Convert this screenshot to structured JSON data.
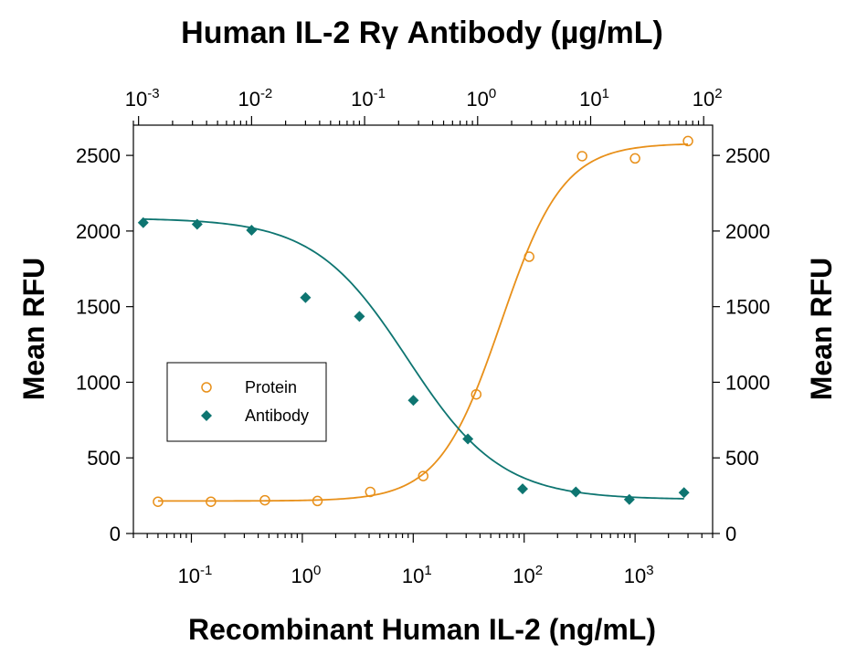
{
  "chart_data": {
    "type": "scatter",
    "title": "Human IL-2 Rγ Antibody (µg/mL)",
    "xlabel": "Recombinant Human IL-2 (ng/mL)",
    "ylabel": "Mean RFU",
    "ylabel_right": "Mean RFU",
    "x_scale": "log",
    "xlim": [
      0.03,
      5000
    ],
    "ylim": [
      0,
      2700
    ],
    "x_ticks": [
      {
        "base": "10",
        "exp": "-1",
        "value": 0.1
      },
      {
        "base": "10",
        "exp": "0",
        "value": 1
      },
      {
        "base": "10",
        "exp": "1",
        "value": 10
      },
      {
        "base": "10",
        "exp": "2",
        "value": 100
      },
      {
        "base": "10",
        "exp": "3",
        "value": 1000
      }
    ],
    "y_ticks": [
      "0",
      "500",
      "1000",
      "1500",
      "2000",
      "2500"
    ],
    "y_tick_values": [
      0,
      500,
      1000,
      1500,
      2000,
      2500
    ],
    "top_axis": {
      "label": "Human IL-2 Rγ Antibody (µg/mL)",
      "xlim": [
        0.0009,
        120
      ],
      "ticks": [
        {
          "base": "10",
          "exp": "-3",
          "value": 0.001
        },
        {
          "base": "10",
          "exp": "-2",
          "value": 0.01
        },
        {
          "base": "10",
          "exp": "-1",
          "value": 0.1
        },
        {
          "base": "10",
          "exp": "0",
          "value": 1
        },
        {
          "base": "10",
          "exp": "1",
          "value": 10
        },
        {
          "base": "10",
          "exp": "2",
          "value": 100
        }
      ]
    },
    "legend": {
      "position": "center-left"
    },
    "series": [
      {
        "name": "Protein",
        "axis": "bottom",
        "marker": "open-circle",
        "color": "#E8901A",
        "x": [
          0.05,
          0.15,
          0.46,
          1.37,
          4.1,
          12.3,
          37,
          111,
          333,
          1000,
          3000
        ],
        "y": [
          210,
          210,
          220,
          215,
          275,
          380,
          920,
          1830,
          2495,
          2480,
          2595
        ]
      },
      {
        "name": "Antibody",
        "axis": "top",
        "marker": "filled-diamond",
        "color": "#0E7571",
        "x": [
          0.0011,
          0.0033,
          0.01,
          0.03,
          0.09,
          0.27,
          0.82,
          2.5,
          7.4,
          22,
          67
        ],
        "y": [
          2055,
          2045,
          2005,
          1560,
          1435,
          880,
          625,
          295,
          275,
          225,
          270
        ]
      }
    ]
  }
}
